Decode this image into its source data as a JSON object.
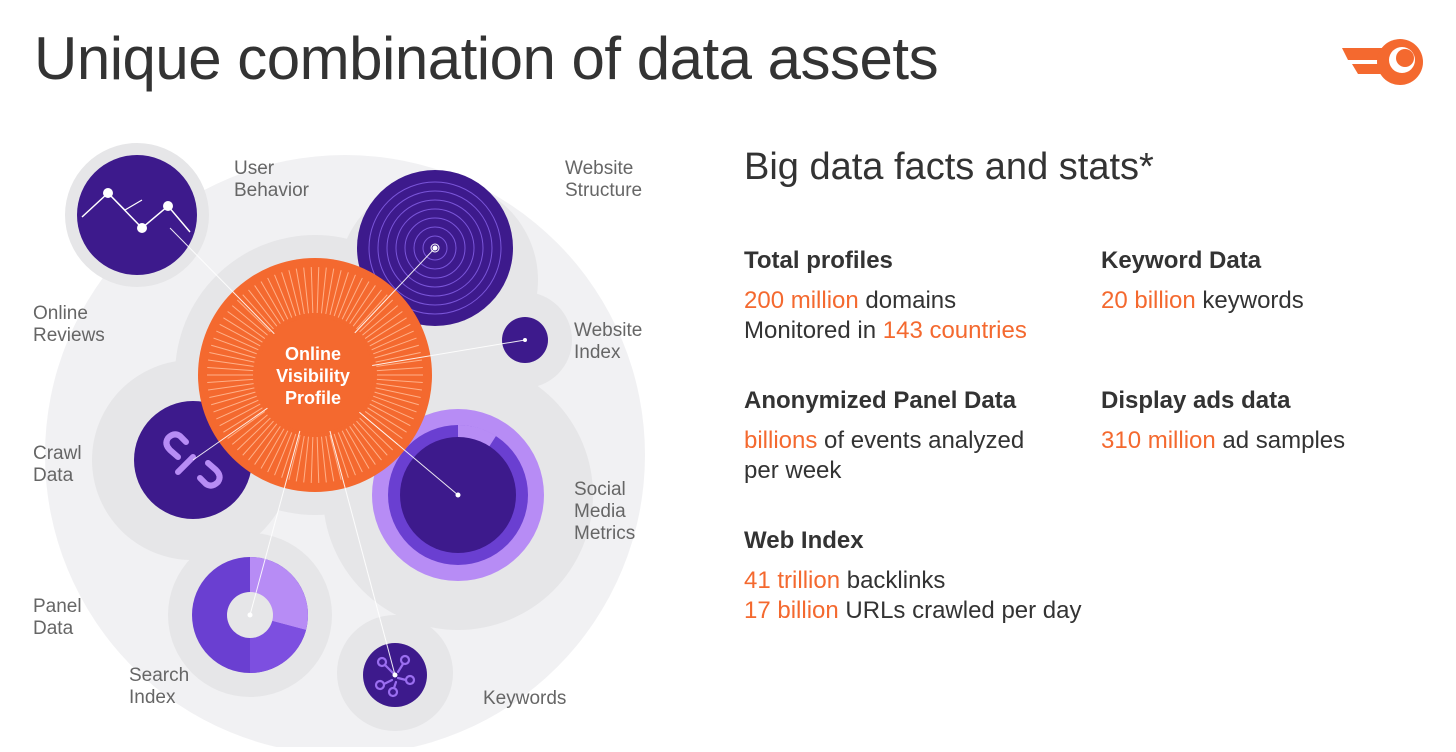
{
  "title": "Unique combination of data assets",
  "brand_color": "#f4692f",
  "logo_icon": "semrush-logo-icon",
  "diagram": {
    "center_label": [
      "Online",
      "Visibility",
      "Profile"
    ],
    "labels": {
      "user_behavior": [
        "User",
        "Behavior"
      ],
      "website_structure": [
        "Website",
        "Structure"
      ],
      "online_reviews": [
        "Online",
        "Reviews"
      ],
      "website_index": [
        "Website",
        "Index"
      ],
      "crawl_data": [
        "Crawl",
        "Data"
      ],
      "social_media_metrics": [
        "Social",
        "Media",
        "Metrics"
      ],
      "panel_data": [
        "Panel",
        "Data"
      ],
      "search_index": [
        "Search",
        "Index"
      ],
      "keywords": [
        "Keywords"
      ]
    },
    "colors": {
      "dark_purple": "#3d1a8c",
      "mid_purple": "#6a3fd1",
      "light_purple": "#b78cf5",
      "gray": "#e6e6e8",
      "orange": "#f4692f"
    }
  },
  "stats": {
    "heading": "Big data facts and stats*",
    "total_profiles": {
      "heading": "Total profiles",
      "line1_hl": "200 million",
      "line1_rest": " domains",
      "line2_pre": "Monitored in ",
      "line2_hl": "143 countries"
    },
    "keyword_data": {
      "heading": "Keyword Data",
      "line1_hl": "20 billion",
      "line1_rest": " keywords"
    },
    "panel_data": {
      "heading": "Anonymized Panel Data",
      "line1_hl": "billions",
      "line1_rest": " of events analyzed",
      "line2": "per week"
    },
    "display_ads": {
      "heading": "Display ads data",
      "line1_hl": "310 million",
      "line1_rest": " ad samples"
    },
    "web_index": {
      "heading": "Web Index",
      "line1_hl": "41 trillion",
      "line1_rest": " backlinks",
      "line2_hl": "17 billion",
      "line2_rest": " URLs crawled per day"
    }
  }
}
